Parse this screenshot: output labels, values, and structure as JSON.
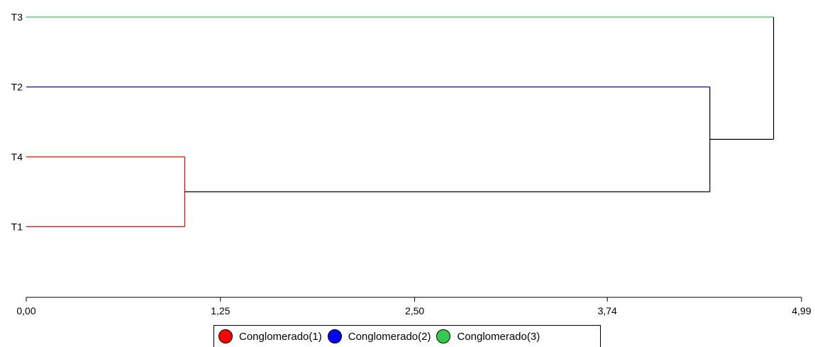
{
  "chart_data": {
    "type": "dendrogram",
    "title": "",
    "xlabel": "",
    "ylabel": "",
    "xlim": [
      0,
      4.99
    ],
    "x_ticks": [
      "0,00",
      "1,25",
      "2,50",
      "3,74",
      "4,99"
    ],
    "x_tick_values": [
      0,
      1.25,
      2.5,
      3.74,
      4.99
    ],
    "grid": false,
    "legend_position": "bottom-center",
    "leaves": [
      "T3",
      "T2",
      "T4",
      "T1"
    ],
    "leaf_clusters": {
      "T3": 3,
      "T2": 2,
      "T4": 1,
      "T1": 1
    },
    "merges": [
      {
        "left": "T4",
        "right": "T1",
        "height": 1.02
      },
      {
        "left": "T2",
        "right": "T4+T1",
        "height": 4.4
      },
      {
        "left": "T3",
        "right": "T2+T4+T1",
        "height": 4.81
      }
    ],
    "link_color": "#000000",
    "clusters": [
      {
        "name": "Conglomerado(1)",
        "color": "#ff0000"
      },
      {
        "name": "Conglomerado(2)",
        "color": "#0000ff"
      },
      {
        "name": "Conglomerado(3)",
        "color": "#33cc4d"
      }
    ]
  }
}
